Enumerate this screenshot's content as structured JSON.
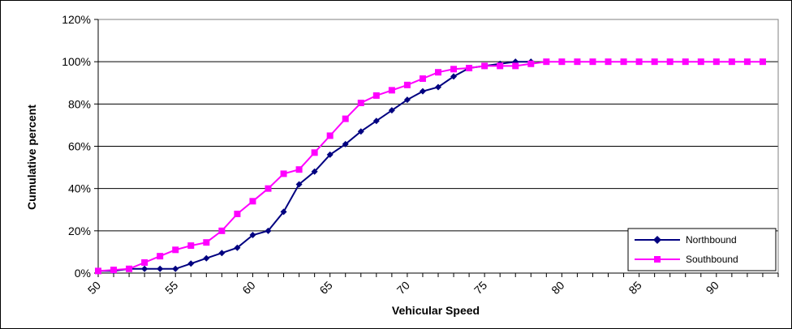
{
  "chart_data": {
    "type": "line",
    "xlabel": "Vehicular Speed",
    "ylabel": "Cumulative percent",
    "xlim": [
      50,
      94
    ],
    "ylim": [
      0,
      120
    ],
    "x_ticks": [
      50,
      55,
      60,
      65,
      70,
      75,
      80,
      85,
      90
    ],
    "y_ticks": [
      0,
      20,
      40,
      60,
      80,
      100,
      120
    ],
    "y_tick_labels": [
      "0%",
      "20%",
      "40%",
      "60%",
      "80%",
      "100%",
      "120%"
    ],
    "grid": "horizontal",
    "legend_position": "bottom-right",
    "series": [
      {
        "name": "Northbound",
        "color": "#000080",
        "marker": "diamond",
        "x": [
          50,
          51,
          52,
          53,
          54,
          55,
          56,
          57,
          58,
          59,
          60,
          61,
          62,
          63,
          64,
          65,
          66,
          67,
          68,
          69,
          70,
          71,
          72,
          73,
          74,
          75,
          76,
          77,
          78
        ],
        "values": [
          1,
          1,
          2,
          2,
          2,
          2,
          4.5,
          7,
          9.5,
          12,
          18,
          20,
          29,
          42,
          48,
          56,
          61,
          67,
          72,
          77,
          82,
          86,
          88,
          93,
          97,
          98,
          99,
          100,
          100
        ]
      },
      {
        "name": "Southbound",
        "color": "#FF00FF",
        "marker": "square",
        "x": [
          50,
          51,
          52,
          53,
          54,
          55,
          56,
          57,
          58,
          59,
          60,
          61,
          62,
          63,
          64,
          65,
          66,
          67,
          68,
          69,
          70,
          71,
          72,
          73,
          74,
          75,
          76,
          77,
          78,
          79,
          80,
          81,
          82,
          83,
          84,
          85,
          86,
          87,
          88,
          89,
          90,
          91,
          92,
          93
        ],
        "values": [
          1,
          1.5,
          2,
          5,
          8,
          11,
          13,
          14.5,
          20,
          28,
          34,
          40,
          47,
          49,
          57,
          65,
          73,
          80.5,
          84,
          86.5,
          89,
          92,
          95,
          96.5,
          97,
          98,
          98,
          98,
          99,
          100,
          100,
          100,
          100,
          100,
          100,
          100,
          100,
          100,
          100,
          100,
          100,
          100,
          100,
          100
        ]
      }
    ]
  }
}
